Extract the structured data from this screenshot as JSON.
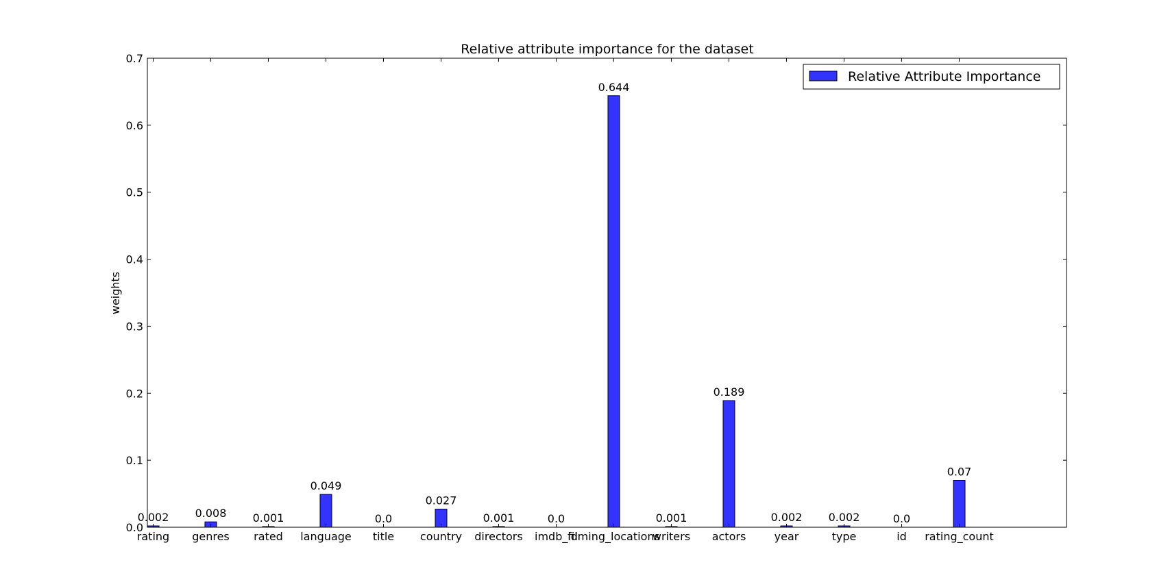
{
  "chart_data": {
    "type": "bar",
    "title": "Relative attribute importance for the dataset",
    "xlabel": "",
    "ylabel": "weights",
    "ylim": [
      0,
      0.7
    ],
    "yticks": [
      "0.0",
      "0.1",
      "0.2",
      "0.3",
      "0.4",
      "0.5",
      "0.6",
      "0.7"
    ],
    "categories": [
      "rating",
      "genres",
      "rated",
      "language",
      "title",
      "country",
      "directors",
      "imdb_id",
      "filming_locations",
      "writers",
      "actors",
      "year",
      "type",
      "id",
      "rating_count"
    ],
    "series": [
      {
        "name": "Relative Attribute Importance",
        "values": [
          0.002,
          0.008,
          0.001,
          0.049,
          0.0,
          0.027,
          0.001,
          0.0,
          0.644,
          0.001,
          0.189,
          0.002,
          0.002,
          0.0,
          0.07
        ],
        "labels": [
          "0.002",
          "0.008",
          "0.001",
          "0.049",
          "0.0",
          "0.027",
          "0.001",
          "0.0",
          "0.644",
          "0.001",
          "0.189",
          "0.002",
          "0.002",
          "0.0",
          "0.07"
        ]
      }
    ],
    "legend": {
      "position": "top-right"
    },
    "grid": false,
    "bar_color": "#3333ff"
  }
}
